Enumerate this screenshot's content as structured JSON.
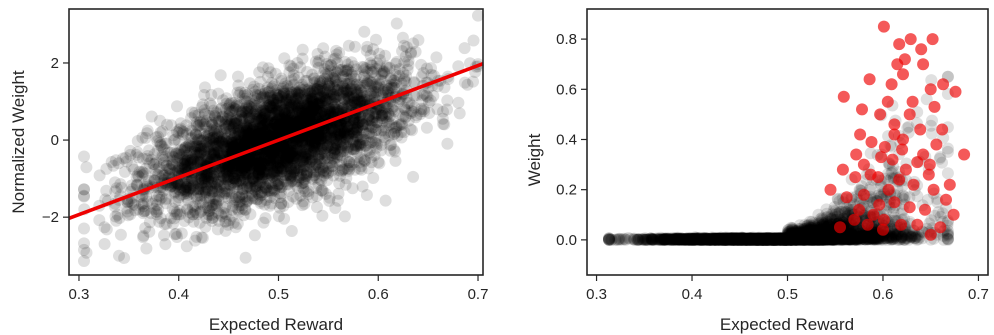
{
  "chart_data": [
    {
      "type": "scatter",
      "title": "",
      "xlabel": "Expected Reward",
      "ylabel": "Normalized Weight",
      "xlim": [
        0.29,
        0.705
      ],
      "ylim": [
        -3.5,
        3.4
      ],
      "xticks": [
        "0.3",
        "0.4",
        "0.5",
        "0.6",
        "0.7"
      ],
      "xtick_values": [
        0.3,
        0.4,
        0.5,
        0.6,
        0.7
      ],
      "yticks": [
        "−2",
        "0",
        "2"
      ],
      "ytick_values": [
        -2,
        0,
        2
      ],
      "grid": false,
      "series": [
        {
          "color": "#000000",
          "opacity": 0.13,
          "n_points": 4000,
          "x_mean": 0.5,
          "x_sd": 0.065,
          "trend_slope": 8.3,
          "trend_intercept": -4.15,
          "residual_sd": 0.72
        }
      ],
      "fit_line": {
        "color": "#ee0000",
        "x": [
          0.29,
          0.705
        ],
        "y": [
          -2.03,
          1.98
        ]
      }
    },
    {
      "type": "scatter",
      "title": "",
      "xlabel": "Expected Reward",
      "ylabel": "Weight",
      "xlim": [
        0.29,
        0.71
      ],
      "ylim": [
        -0.14,
        0.92
      ],
      "xticks": [
        "0.3",
        "0.4",
        "0.5",
        "0.6",
        "0.7"
      ],
      "xtick_values": [
        0.3,
        0.4,
        0.5,
        0.6,
        0.7
      ],
      "yticks": [
        "0.0",
        "0.2",
        "0.4",
        "0.6",
        "0.8"
      ],
      "ytick_values": [
        0.0,
        0.2,
        0.4,
        0.6,
        0.8
      ],
      "grid": false,
      "series": [
        {
          "color": "#000000",
          "opacity": 0.12,
          "n_points": 4000
        },
        {
          "color": "#ee0000",
          "opacity": 0.65,
          "points": [
            [
              0.601,
              0.85
            ],
            [
              0.629,
              0.8
            ],
            [
              0.652,
              0.8
            ],
            [
              0.617,
              0.78
            ],
            [
              0.64,
              0.76
            ],
            [
              0.623,
              0.72
            ],
            [
              0.642,
              0.7
            ],
            [
              0.663,
              0.62
            ],
            [
              0.676,
              0.59
            ],
            [
              0.615,
              0.7
            ],
            [
              0.621,
              0.66
            ],
            [
              0.586,
              0.64
            ],
            [
              0.609,
              0.62
            ],
            [
              0.65,
              0.6
            ],
            [
              0.559,
              0.57
            ],
            [
              0.578,
              0.52
            ],
            [
              0.631,
              0.55
            ],
            [
              0.605,
              0.55
            ],
            [
              0.654,
              0.53
            ],
            [
              0.597,
              0.5
            ],
            [
              0.612,
              0.46
            ],
            [
              0.639,
              0.44
            ],
            [
              0.576,
              0.42
            ],
            [
              0.588,
              0.39
            ],
            [
              0.621,
              0.4
            ],
            [
              0.656,
              0.38
            ],
            [
              0.602,
              0.37
            ],
            [
              0.62,
              0.36
            ],
            [
              0.642,
              0.34
            ],
            [
              0.685,
              0.34
            ],
            [
              0.572,
              0.34
            ],
            [
              0.598,
              0.33
            ],
            [
              0.58,
              0.3
            ],
            [
              0.61,
              0.32
            ],
            [
              0.636,
              0.31
            ],
            [
              0.649,
              0.3
            ],
            [
              0.558,
              0.28
            ],
            [
              0.571,
              0.25
            ],
            [
              0.595,
              0.25
            ],
            [
              0.617,
              0.24
            ],
            [
              0.632,
              0.22
            ],
            [
              0.653,
              0.2
            ],
            [
              0.666,
              0.16
            ],
            [
              0.545,
              0.2
            ],
            [
              0.562,
              0.17
            ],
            [
              0.58,
              0.18
            ],
            [
              0.596,
              0.14
            ],
            [
              0.612,
              0.15
            ],
            [
              0.628,
              0.13
            ],
            [
              0.644,
              0.12
            ],
            [
              0.674,
              0.1
            ],
            [
              0.555,
              0.05
            ],
            [
              0.57,
              0.08
            ],
            [
              0.584,
              0.06
            ],
            [
              0.601,
              0.08
            ],
            [
              0.619,
              0.06
            ],
            [
              0.636,
              0.06
            ],
            [
              0.65,
              0.02
            ],
            [
              0.66,
              0.05
            ],
            [
              0.59,
              0.1
            ],
            [
              0.606,
              0.2
            ],
            [
              0.624,
              0.28
            ],
            [
              0.612,
              0.42
            ],
            [
              0.628,
              0.5
            ],
            [
              0.587,
              0.26
            ],
            [
              0.575,
              0.12
            ],
            [
              0.648,
              0.26
            ],
            [
              0.662,
              0.44
            ],
            [
              0.67,
              0.22
            ],
            [
              0.6,
              0.04
            ]
          ]
        }
      ]
    }
  ]
}
